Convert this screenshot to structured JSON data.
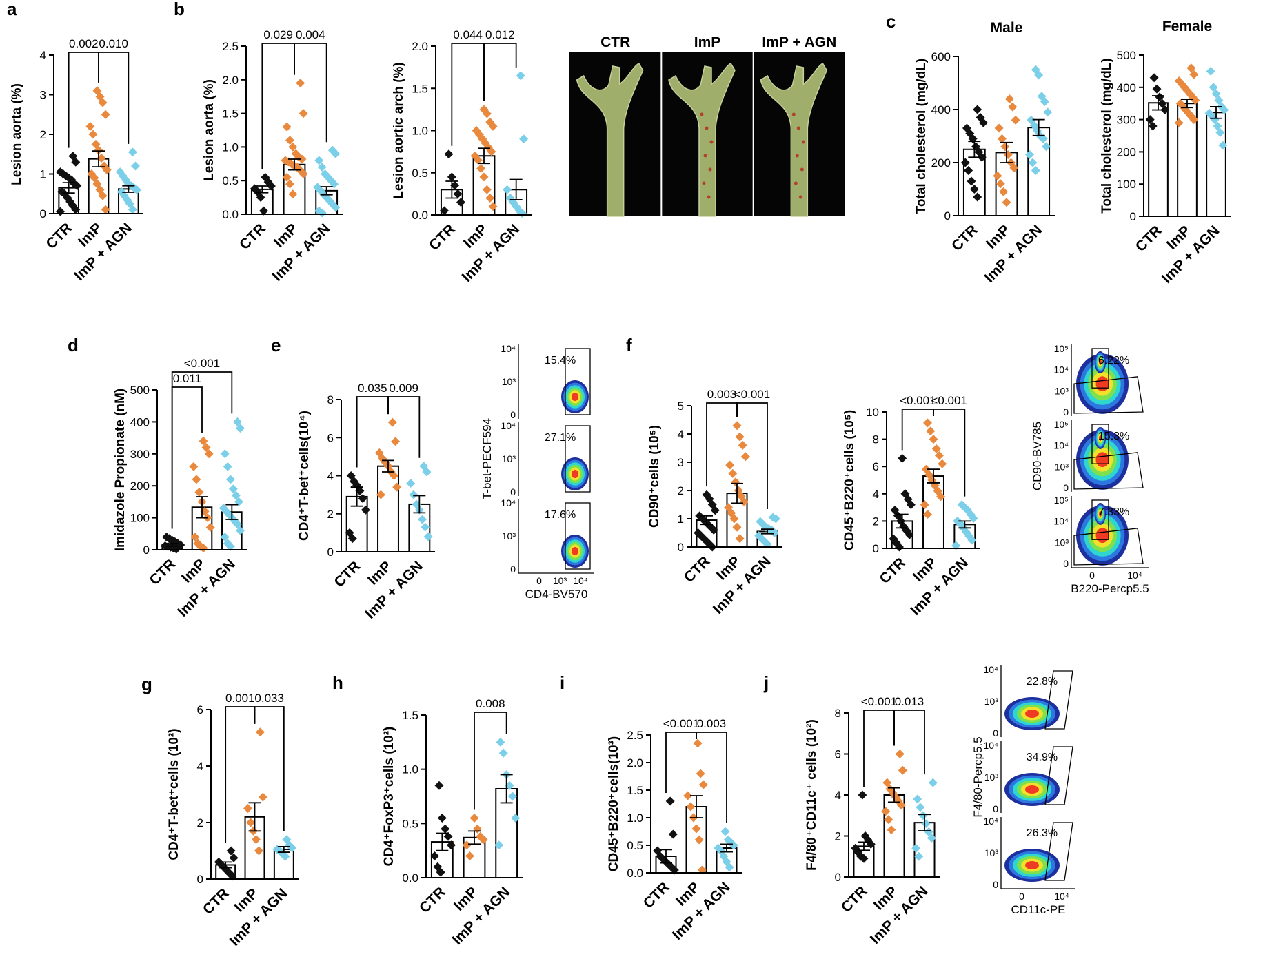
{
  "colors": {
    "ctr": "#111111",
    "imp": "#e8893e",
    "agn": "#7ccfe8",
    "photo_bg": "#050505",
    "aorta": "#9fae6a"
  },
  "panel_letters": [
    "a",
    "b",
    "c",
    "d",
    "e",
    "f",
    "g",
    "h",
    "i",
    "j"
  ],
  "photo": {
    "labels": [
      "CTR",
      "ImP",
      "ImP + AGN"
    ]
  },
  "flow": {
    "e": {
      "ylabel": "T-bet-PECF594",
      "xlabel": "CD4-BV570",
      "x_ticks": [
        "0",
        "10³",
        "10⁴"
      ],
      "y_ticks": [
        "10⁴",
        "10³",
        "0"
      ],
      "percents": [
        "15.4%",
        "27.1%",
        "17.6%"
      ]
    },
    "f": {
      "ylabel": "CD90-BV785",
      "xlabel": "B220-Percp5.5",
      "x_ticks": [
        "0",
        "10⁴"
      ],
      "y_ticks": [
        "10⁵",
        "10⁴",
        "10³",
        "0"
      ],
      "percents": [
        "6.22%",
        "15.3%",
        "7.33%"
      ]
    },
    "j": {
      "ylabel": "F4/80-Percp5.5",
      "xlabel": "CD11c-PE",
      "x_ticks": [
        "0",
        "10⁴"
      ],
      "y_ticks": [
        "10⁴",
        "10³",
        "0"
      ],
      "percents": [
        "22.8%",
        "34.9%",
        "26.3%"
      ]
    }
  },
  "chart_data": [
    {
      "panel": "a",
      "type": "bar",
      "categories": [
        "CTR",
        "ImP",
        "ImP + AGN"
      ],
      "ylabel": "Lesion  aorta (%)",
      "ylim": [
        0,
        4
      ],
      "yticks": [
        "0",
        "1",
        "2",
        "3",
        "4"
      ],
      "values": [
        0.65,
        1.38,
        0.62
      ],
      "sem": [
        0.13,
        0.2,
        0.08
      ],
      "points": [
        [
          0.05,
          0.1,
          0.2,
          0.3,
          0.4,
          0.5,
          0.55,
          0.7,
          0.75,
          0.85,
          0.9,
          0.95,
          1.0,
          1.05,
          1.3,
          1.45
        ],
        [
          0.1,
          0.45,
          0.6,
          0.75,
          0.9,
          1.0,
          1.1,
          1.2,
          1.4,
          1.6,
          1.75,
          2.0,
          2.2,
          2.5,
          2.8,
          2.95,
          3.1
        ],
        [
          0.1,
          0.25,
          0.35,
          0.45,
          0.55,
          0.6,
          0.65,
          0.7,
          0.75,
          0.85,
          0.95,
          1.05,
          1.2,
          1.55
        ]
      ],
      "comparisons": [
        {
          "pair": [
            0,
            1
          ],
          "label": "0.002"
        },
        {
          "pair": [
            1,
            2
          ],
          "label": "0.010"
        }
      ]
    },
    {
      "panel": "b1",
      "type": "bar",
      "categories": [
        "CTR",
        "ImP",
        "ImP + AGN"
      ],
      "ylabel": "Lesion  aorta (%)",
      "ylim": [
        0,
        2.5
      ],
      "yticks": [
        "0.0",
        "0.5",
        "1.0",
        "1.5",
        "2.0",
        "2.5"
      ],
      "values": [
        0.37,
        0.74,
        0.35
      ],
      "sem": [
        0.05,
        0.08,
        0.06
      ],
      "points": [
        [
          0.05,
          0.25,
          0.33,
          0.38,
          0.42,
          0.48,
          0.55
        ],
        [
          0.3,
          0.45,
          0.55,
          0.6,
          0.65,
          0.7,
          0.72,
          0.75,
          0.78,
          0.8,
          0.82,
          0.85,
          0.9,
          1.0,
          1.1,
          1.3,
          1.5,
          1.95
        ],
        [
          0.02,
          0.05,
          0.1,
          0.15,
          0.2,
          0.25,
          0.3,
          0.35,
          0.4,
          0.45,
          0.5,
          0.55,
          0.6,
          0.7,
          0.8,
          0.9,
          0.95
        ]
      ],
      "comparisons": [
        {
          "pair": [
            0,
            1
          ],
          "label": "0.029"
        },
        {
          "pair": [
            1,
            2
          ],
          "label": "0.004"
        }
      ]
    },
    {
      "panel": "b2",
      "type": "bar",
      "categories": [
        "CTR",
        "ImP",
        "ImP + AGN"
      ],
      "ylabel": "Lesion aortic arch (%)",
      "ylim": [
        0,
        2.0
      ],
      "yticks": [
        "0.0",
        "0.5",
        "1.0",
        "1.5",
        "2.0"
      ],
      "values": [
        0.3,
        0.7,
        0.3
      ],
      "sem": [
        0.1,
        0.09,
        0.12
      ],
      "points": [
        [
          0.05,
          0.15,
          0.25,
          0.35,
          0.45,
          0.72
        ],
        [
          0.1,
          0.2,
          0.3,
          0.45,
          0.55,
          0.65,
          0.7,
          0.75,
          0.8,
          0.85,
          0.9,
          0.95,
          1.0,
          1.05,
          1.1,
          1.2,
          1.25
        ],
        [
          0.02,
          0.05,
          0.1,
          0.15,
          0.2,
          0.3,
          0.9,
          1.65
        ]
      ],
      "comparisons": [
        {
          "pair": [
            0,
            1
          ],
          "label": "0.044"
        },
        {
          "pair": [
            1,
            2
          ],
          "label": "0.012"
        }
      ]
    },
    {
      "panel": "c1",
      "type": "bar",
      "title": "Male",
      "categories": [
        "CTR",
        "ImP",
        "ImP + AGN"
      ],
      "ylabel": "Total cholesterol (mg/dL)",
      "ylim": [
        0,
        600
      ],
      "yticks": [
        "0",
        "200",
        "400",
        "600"
      ],
      "values": [
        250,
        238,
        332
      ],
      "sem": [
        30,
        38,
        30
      ],
      "points": [
        [
          70,
          100,
          130,
          170,
          200,
          220,
          240,
          260,
          290,
          310,
          330,
          350,
          370,
          400
        ],
        [
          50,
          90,
          120,
          150,
          180,
          200,
          230,
          260,
          290,
          330,
          360,
          410,
          440
        ],
        [
          170,
          200,
          230,
          260,
          290,
          300,
          320,
          340,
          360,
          390,
          430,
          450,
          530,
          550
        ]
      ],
      "comparisons": []
    },
    {
      "panel": "c2",
      "type": "bar",
      "title": "Female",
      "categories": [
        "CTR",
        "ImP",
        "ImP + AGN"
      ],
      "ylabel": "Total cholesterol (mg/dL)",
      "ylim": [
        0,
        500
      ],
      "yticks": [
        "0",
        "100",
        "200",
        "300",
        "400",
        "500"
      ],
      "values": [
        352,
        350,
        322
      ],
      "sem": [
        22,
        13,
        18
      ],
      "points": [
        [
          280,
          300,
          330,
          350,
          370,
          395,
          430
        ],
        [
          290,
          300,
          310,
          320,
          330,
          340,
          350,
          360,
          370,
          380,
          390,
          400,
          410,
          420,
          440,
          460
        ],
        [
          220,
          260,
          280,
          300,
          310,
          320,
          330,
          340,
          360,
          380,
          400,
          450
        ]
      ],
      "comparisons": []
    },
    {
      "panel": "d",
      "type": "bar",
      "categories": [
        "CTR",
        "ImP",
        "ImP + AGN"
      ],
      "ylabel": "Imidazole Propionate (nM)",
      "ylim": [
        0,
        500
      ],
      "yticks": [
        "0",
        "100",
        "200",
        "300",
        "400",
        "500"
      ],
      "values": [
        15,
        133,
        118
      ],
      "sem": [
        4,
        33,
        23
      ],
      "points": [
        [
          2,
          5,
          8,
          10,
          12,
          15,
          20,
          25,
          30,
          35,
          40
        ],
        [
          5,
          10,
          20,
          40,
          70,
          100,
          120,
          150,
          180,
          220,
          260,
          300,
          320,
          340
        ],
        [
          10,
          20,
          40,
          60,
          80,
          90,
          100,
          110,
          120,
          130,
          150,
          170,
          190,
          220,
          260,
          300,
          380,
          400
        ]
      ],
      "comparisons": [
        {
          "pair": [
            0,
            1
          ],
          "label": "0.011"
        },
        {
          "pair": [
            0,
            2
          ],
          "label": "<0.001"
        }
      ]
    },
    {
      "panel": "e",
      "type": "bar",
      "categories": [
        "CTR",
        "ImP",
        "ImP + AGN"
      ],
      "ylabel": "CD4⁺T-bet⁺cells(10⁴)",
      "ylim": [
        0,
        8
      ],
      "yticks": [
        "0",
        "2",
        "4",
        "6",
        "8"
      ],
      "values": [
        2.9,
        4.5,
        2.5
      ],
      "sem": [
        0.5,
        0.3,
        0.45
      ],
      "points": [
        [
          0.7,
          1.0,
          2.2,
          2.8,
          3.2,
          3.5,
          3.7,
          4.0
        ],
        [
          3.0,
          3.4,
          4.0,
          4.2,
          4.5,
          4.7,
          4.9,
          5.2,
          5.8,
          6.8
        ],
        [
          0.8,
          1.3,
          1.7,
          2.2,
          2.5,
          3.0,
          3.6,
          4.2,
          4.5
        ]
      ],
      "comparisons": [
        {
          "pair": [
            0,
            1
          ],
          "label": "0.035"
        },
        {
          "pair": [
            1,
            2
          ],
          "label": "0.009"
        }
      ]
    },
    {
      "panel": "f1",
      "type": "bar",
      "categories": [
        "CTR",
        "ImP",
        "ImP + AGN"
      ],
      "ylabel": "CD90⁺cells (10⁵)",
      "ylim": [
        0,
        5
      ],
      "yticks": [
        "0",
        "1",
        "2",
        "3",
        "4",
        "5"
      ],
      "values": [
        0.95,
        1.9,
        0.55
      ],
      "sem": [
        0.15,
        0.35,
        0.08
      ],
      "points": [
        [
          0.0,
          0.1,
          0.2,
          0.3,
          0.4,
          0.5,
          0.6,
          0.7,
          0.8,
          0.9,
          1.0,
          1.1,
          1.3,
          1.5,
          1.7,
          1.85
        ],
        [
          0.3,
          0.7,
          1.0,
          1.2,
          1.4,
          1.6,
          1.8,
          2.0,
          2.3,
          2.6,
          2.9,
          3.2,
          3.6,
          3.9,
          4.3
        ],
        [
          0.1,
          0.2,
          0.3,
          0.4,
          0.5,
          0.6,
          0.65,
          0.7,
          0.8,
          0.9,
          1.0,
          1.05
        ]
      ],
      "comparisons": [
        {
          "pair": [
            0,
            1
          ],
          "label": "0.003"
        },
        {
          "pair": [
            1,
            2
          ],
          "label": "<0.001"
        }
      ]
    },
    {
      "panel": "f2",
      "type": "bar",
      "categories": [
        "CTR",
        "ImP",
        "ImP + AGN"
      ],
      "ylabel": "CD45⁺B220⁺cells (10⁵)",
      "ylim": [
        0,
        10
      ],
      "yticks": [
        "0",
        "2",
        "4",
        "6",
        "8",
        "10"
      ],
      "values": [
        2.0,
        5.3,
        1.75
      ],
      "sem": [
        0.5,
        0.5,
        0.25
      ],
      "points": [
        [
          0.1,
          0.4,
          0.7,
          1.0,
          1.3,
          1.6,
          2.0,
          2.4,
          2.8,
          3.2,
          3.6,
          4.0,
          6.6
        ],
        [
          2.5,
          3.2,
          3.8,
          4.2,
          4.6,
          5.0,
          5.4,
          5.8,
          6.2,
          6.8,
          7.3,
          8.0,
          8.6,
          9.2
        ],
        [
          0.2,
          0.6,
          0.9,
          1.2,
          1.5,
          1.8,
          2.0,
          2.2,
          2.5,
          2.8,
          3.0,
          3.2
        ]
      ],
      "comparisons": [
        {
          "pair": [
            0,
            1
          ],
          "label": "<0.001"
        },
        {
          "pair": [
            1,
            2
          ],
          "label": "<0.001"
        }
      ]
    },
    {
      "panel": "g",
      "type": "bar",
      "categories": [
        "CTR",
        "ImP",
        "ImP + AGN"
      ],
      "ylabel": "CD4⁺T-bet⁺cells (10²)",
      "ylim": [
        0,
        6
      ],
      "yticks": [
        "0",
        "2",
        "4",
        "6"
      ],
      "values": [
        0.5,
        2.2,
        1.05
      ],
      "sem": [
        0.1,
        0.5,
        0.1
      ],
      "points": [
        [
          0.1,
          0.2,
          0.3,
          0.4,
          0.5,
          0.6,
          0.75,
          1.0
        ],
        [
          1.0,
          1.4,
          1.7,
          2.0,
          2.5,
          2.9,
          5.2
        ],
        [
          0.8,
          0.9,
          1.0,
          1.05,
          1.1,
          1.2,
          1.4
        ]
      ],
      "comparisons": [
        {
          "pair": [
            0,
            1
          ],
          "label": "0.001"
        },
        {
          "pair": [
            1,
            2
          ],
          "label": "0.033"
        }
      ]
    },
    {
      "panel": "h",
      "type": "bar",
      "categories": [
        "CTR",
        "ImP",
        "ImP + AGN"
      ],
      "ylabel": "CD4⁺FoxP3⁺cells (10²)",
      "ylim": [
        0,
        1.5
      ],
      "yticks": [
        "0.0",
        "0.5",
        "1.0",
        "1.5"
      ],
      "values": [
        0.33,
        0.37,
        0.82
      ],
      "sem": [
        0.08,
        0.06,
        0.13
      ],
      "points": [
        [
          0.05,
          0.1,
          0.2,
          0.3,
          0.38,
          0.45,
          0.55,
          0.85
        ],
        [
          0.2,
          0.3,
          0.35,
          0.38,
          0.45,
          0.55
        ],
        [
          0.3,
          0.55,
          0.75,
          0.85,
          0.95,
          1.15,
          1.25
        ]
      ],
      "comparisons": [
        {
          "pair": [
            1,
            2
          ],
          "label": "0.008"
        }
      ]
    },
    {
      "panel": "i",
      "type": "bar",
      "categories": [
        "CTR",
        "ImP",
        "ImP + AGN"
      ],
      "ylabel": "CD45⁺B220⁺cells(10³)",
      "ylim": [
        0,
        2.5
      ],
      "yticks": [
        "0.0",
        "0.5",
        "1.0",
        "1.5",
        "2.0",
        "2.5"
      ],
      "values": [
        0.3,
        1.2,
        0.45
      ],
      "sem": [
        0.12,
        0.2,
        0.07
      ],
      "points": [
        [
          0.05,
          0.1,
          0.15,
          0.2,
          0.25,
          0.3,
          0.4,
          0.7,
          1.3
        ],
        [
          0.05,
          0.6,
          0.8,
          1.0,
          1.2,
          1.4,
          1.6,
          1.8,
          2.35
        ],
        [
          0.1,
          0.2,
          0.3,
          0.4,
          0.45,
          0.5,
          0.55,
          0.6,
          0.75
        ]
      ],
      "comparisons": [
        {
          "pair": [
            0,
            1
          ],
          "label": "<0.001"
        },
        {
          "pair": [
            1,
            2
          ],
          "label": "0.003"
        }
      ]
    },
    {
      "panel": "j",
      "type": "bar",
      "categories": [
        "CTR",
        "ImP",
        "ImP + AGN"
      ],
      "ylabel": "F4/80⁺CD11c⁺ cells (10²)",
      "ylim": [
        0,
        8
      ],
      "yticks": [
        "0",
        "2",
        "4",
        "6",
        "8"
      ],
      "values": [
        1.5,
        4.0,
        2.65
      ],
      "sem": [
        0.2,
        0.35,
        0.4
      ],
      "points": [
        [
          0.9,
          1.0,
          1.2,
          1.4,
          1.6,
          1.8,
          2.0,
          4.0
        ],
        [
          2.3,
          2.8,
          3.2,
          3.5,
          3.7,
          3.9,
          4.1,
          4.3,
          4.6,
          5.2,
          6.0
        ],
        [
          1.0,
          1.4,
          1.9,
          2.2,
          2.6,
          3.0,
          3.4,
          3.8,
          4.6
        ]
      ],
      "comparisons": [
        {
          "pair": [
            0,
            1
          ],
          "label": "<0.001"
        },
        {
          "pair": [
            1,
            2
          ],
          "label": "0.013"
        }
      ]
    }
  ]
}
